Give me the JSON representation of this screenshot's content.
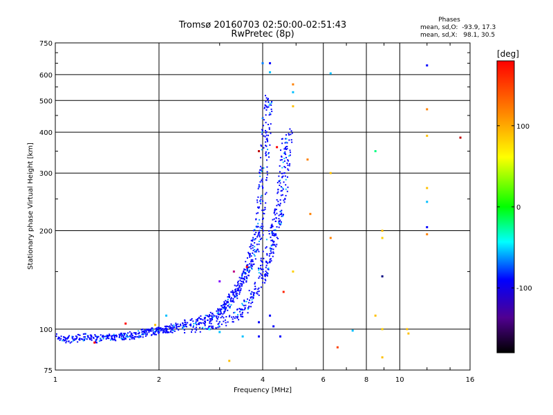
{
  "chart_data": {
    "type": "scatter",
    "title": "Tromsø 20160703 02:50:00-02:51:43",
    "subtitle": "RwPretec (8p)",
    "xlabel": "Frequency [MHz]",
    "ylabel": "Stationary phase Virtual Height [km]",
    "x_scale": "log",
    "y_scale": "log",
    "xlim": [
      1,
      16
    ],
    "ylim": [
      75,
      750
    ],
    "x_ticks": [
      1,
      2,
      4,
      6,
      8,
      10,
      16
    ],
    "x_tick_labels": [
      "1",
      "2",
      "4",
      "6",
      "8",
      "10",
      "16"
    ],
    "y_ticks": [
      75,
      100,
      200,
      300,
      400,
      500,
      600,
      750
    ],
    "y_tick_labels": [
      "75",
      "100",
      "200",
      "300",
      "400",
      "500",
      "600",
      "750"
    ],
    "grid": true,
    "phase_info": {
      "title": "Phases",
      "line_o": "mean, sd,O:  -93.9, 17.3",
      "line_x": "mean, sd,X:   98.1, 30.5"
    },
    "colorbar": {
      "label": "[deg]",
      "range": [
        -180,
        180
      ],
      "ticks": [
        100,
        0,
        -100
      ],
      "tick_labels": [
        "100",
        "0",
        "-100"
      ]
    },
    "o_trace": [
      [
        1.0,
        95
      ],
      [
        1.05,
        94
      ],
      [
        1.1,
        93
      ],
      [
        1.15,
        94
      ],
      [
        1.2,
        95
      ],
      [
        1.25,
        94
      ],
      [
        1.3,
        94
      ],
      [
        1.35,
        93
      ],
      [
        1.4,
        95
      ],
      [
        1.45,
        94
      ],
      [
        1.5,
        94
      ],
      [
        1.55,
        95
      ],
      [
        1.6,
        95
      ],
      [
        1.65,
        95
      ],
      [
        1.7,
        96
      ],
      [
        1.75,
        97
      ],
      [
        1.8,
        97
      ],
      [
        1.85,
        98
      ],
      [
        1.9,
        98
      ],
      [
        1.95,
        99
      ],
      [
        2.0,
        99
      ],
      [
        2.05,
        100
      ],
      [
        2.1,
        100
      ],
      [
        2.15,
        100
      ],
      [
        2.2,
        101
      ],
      [
        2.3,
        102
      ],
      [
        2.4,
        104
      ],
      [
        2.5,
        105
      ],
      [
        2.6,
        106
      ],
      [
        2.7,
        107
      ],
      [
        2.8,
        108
      ],
      [
        2.9,
        110
      ],
      [
        3.0,
        112
      ],
      [
        3.05,
        114
      ],
      [
        3.1,
        116
      ],
      [
        3.15,
        118
      ],
      [
        3.2,
        121
      ],
      [
        3.25,
        124
      ],
      [
        3.3,
        127
      ],
      [
        3.35,
        130
      ],
      [
        3.4,
        134
      ],
      [
        3.45,
        138
      ],
      [
        3.5,
        142
      ],
      [
        3.55,
        146
      ],
      [
        3.6,
        151
      ],
      [
        3.65,
        157
      ],
      [
        3.7,
        163
      ],
      [
        3.75,
        170
      ],
      [
        3.8,
        178
      ],
      [
        3.85,
        188
      ],
      [
        3.9,
        200
      ],
      [
        3.93,
        215
      ],
      [
        3.96,
        235
      ],
      [
        3.99,
        260
      ],
      [
        4.02,
        290
      ],
      [
        4.05,
        325
      ],
      [
        4.08,
        365
      ],
      [
        4.1,
        400
      ],
      [
        4.12,
        440
      ],
      [
        4.14,
        480
      ],
      [
        4.15,
        510
      ]
    ],
    "x_trace": [
      [
        2.4,
        100
      ],
      [
        2.6,
        101
      ],
      [
        2.8,
        102
      ],
      [
        3.0,
        104
      ],
      [
        3.2,
        107
      ],
      [
        3.4,
        111
      ],
      [
        3.5,
        114
      ],
      [
        3.6,
        118
      ],
      [
        3.7,
        123
      ],
      [
        3.8,
        129
      ],
      [
        3.9,
        137
      ],
      [
        4.0,
        147
      ],
      [
        4.05,
        153
      ],
      [
        4.1,
        160
      ],
      [
        4.15,
        168
      ],
      [
        4.2,
        176
      ],
      [
        4.25,
        185
      ],
      [
        4.3,
        195
      ],
      [
        4.35,
        205
      ],
      [
        4.4,
        215
      ],
      [
        4.45,
        225
      ],
      [
        4.5,
        238
      ],
      [
        4.55,
        258
      ],
      [
        4.6,
        280
      ],
      [
        4.62,
        300
      ],
      [
        4.65,
        325
      ],
      [
        4.67,
        350
      ],
      [
        4.7,
        375
      ],
      [
        4.72,
        400
      ]
    ],
    "scattered_points": [
      [
        4.0,
        650,
        "#0080ff"
      ],
      [
        4.2,
        650,
        "#0000ff"
      ],
      [
        4.2,
        610,
        "#00c0ff"
      ],
      [
        4.9,
        560,
        "#ff8000"
      ],
      [
        4.9,
        530,
        "#00c0ff"
      ],
      [
        4.9,
        480,
        "#ffc000"
      ],
      [
        4.4,
        360,
        "#ff0000"
      ],
      [
        3.9,
        350,
        "#c00000"
      ],
      [
        5.4,
        330,
        "#ff8000"
      ],
      [
        6.3,
        605,
        "#00c0ff"
      ],
      [
        6.3,
        300,
        "#ffc000"
      ],
      [
        6.3,
        190,
        "#ff8000"
      ],
      [
        5.5,
        225,
        "#ff8000"
      ],
      [
        4.9,
        150,
        "#ffd000"
      ],
      [
        4.6,
        130,
        "#ff2000"
      ],
      [
        4.2,
        110,
        "#0000ff"
      ],
      [
        3.9,
        105,
        "#0000ff"
      ],
      [
        4.3,
        102,
        "#0000ff"
      ],
      [
        4.5,
        95,
        "#0000ff"
      ],
      [
        3.9,
        95,
        "#0000ff"
      ],
      [
        3.2,
        80,
        "#ffc000"
      ],
      [
        6.6,
        88,
        "#ff4000"
      ],
      [
        7.3,
        99,
        "#00c0ff"
      ],
      [
        8.5,
        350,
        "#00ff80"
      ],
      [
        8.9,
        200,
        "#ffc000"
      ],
      [
        8.9,
        190,
        "#ffd000"
      ],
      [
        8.9,
        145,
        "#000080"
      ],
      [
        8.9,
        82,
        "#ffc000"
      ],
      [
        8.9,
        100,
        "#ffd000"
      ],
      [
        8.5,
        110,
        "#ffc000"
      ],
      [
        10.5,
        100,
        "#ffc000"
      ],
      [
        10.6,
        97,
        "#ffc000"
      ],
      [
        12.0,
        640,
        "#0000ff"
      ],
      [
        12.0,
        470,
        "#ff8000"
      ],
      [
        12.0,
        390,
        "#ffc000"
      ],
      [
        12.0,
        270,
        "#ffc000"
      ],
      [
        12.0,
        245,
        "#00c0ff"
      ],
      [
        12.0,
        205,
        "#0000ff"
      ],
      [
        12.0,
        195,
        "#ff8000"
      ],
      [
        15.0,
        385,
        "#c00000"
      ],
      [
        3.6,
        155,
        "#ff0000"
      ],
      [
        3.3,
        150,
        "#c00080"
      ],
      [
        3.0,
        140,
        "#8000ff"
      ],
      [
        1.6,
        104,
        "#ff0000"
      ],
      [
        1.3,
        91,
        "#ff0000"
      ],
      [
        1.95,
        103,
        "#ffc000"
      ],
      [
        2.1,
        110,
        "#00c0ff"
      ],
      [
        2.8,
        100,
        "#00ffff"
      ],
      [
        3.0,
        98,
        "#00c0ff"
      ],
      [
        3.5,
        95,
        "#00c0ff"
      ]
    ]
  }
}
